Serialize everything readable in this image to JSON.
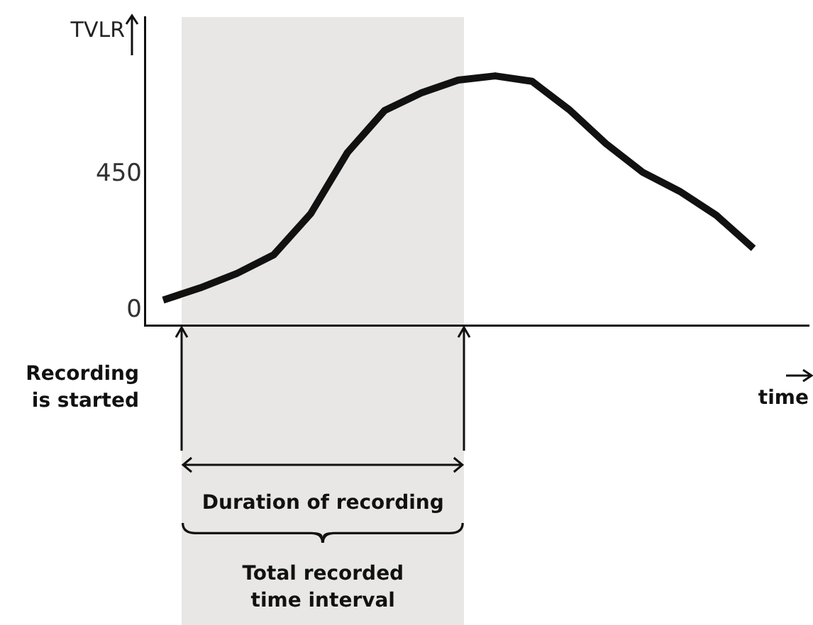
{
  "chart_data": {
    "type": "line",
    "ylabel": "TVLR",
    "xlabel": "time",
    "categories": [
      null,
      null,
      null,
      null,
      null,
      null,
      null,
      null,
      null,
      null,
      null,
      null,
      null,
      null,
      null,
      null,
      null,
      null
    ],
    "series": [
      {
        "color": "#111111",
        "values": [
          34,
          74,
          122,
          184,
          320,
          523,
          661,
          720,
          762,
          776,
          758,
          665,
          552,
          457,
          394,
          314,
          205,
          null
        ]
      }
    ],
    "ylim": [
      -50,
      970
    ],
    "yticks": [
      0,
      450
    ],
    "grid": false,
    "legend": false,
    "marker": "none",
    "line_style": "solid",
    "annotations": [
      "Recording\nis started",
      "Duration of recording",
      "Total recorded\ntime interval"
    ]
  }
}
